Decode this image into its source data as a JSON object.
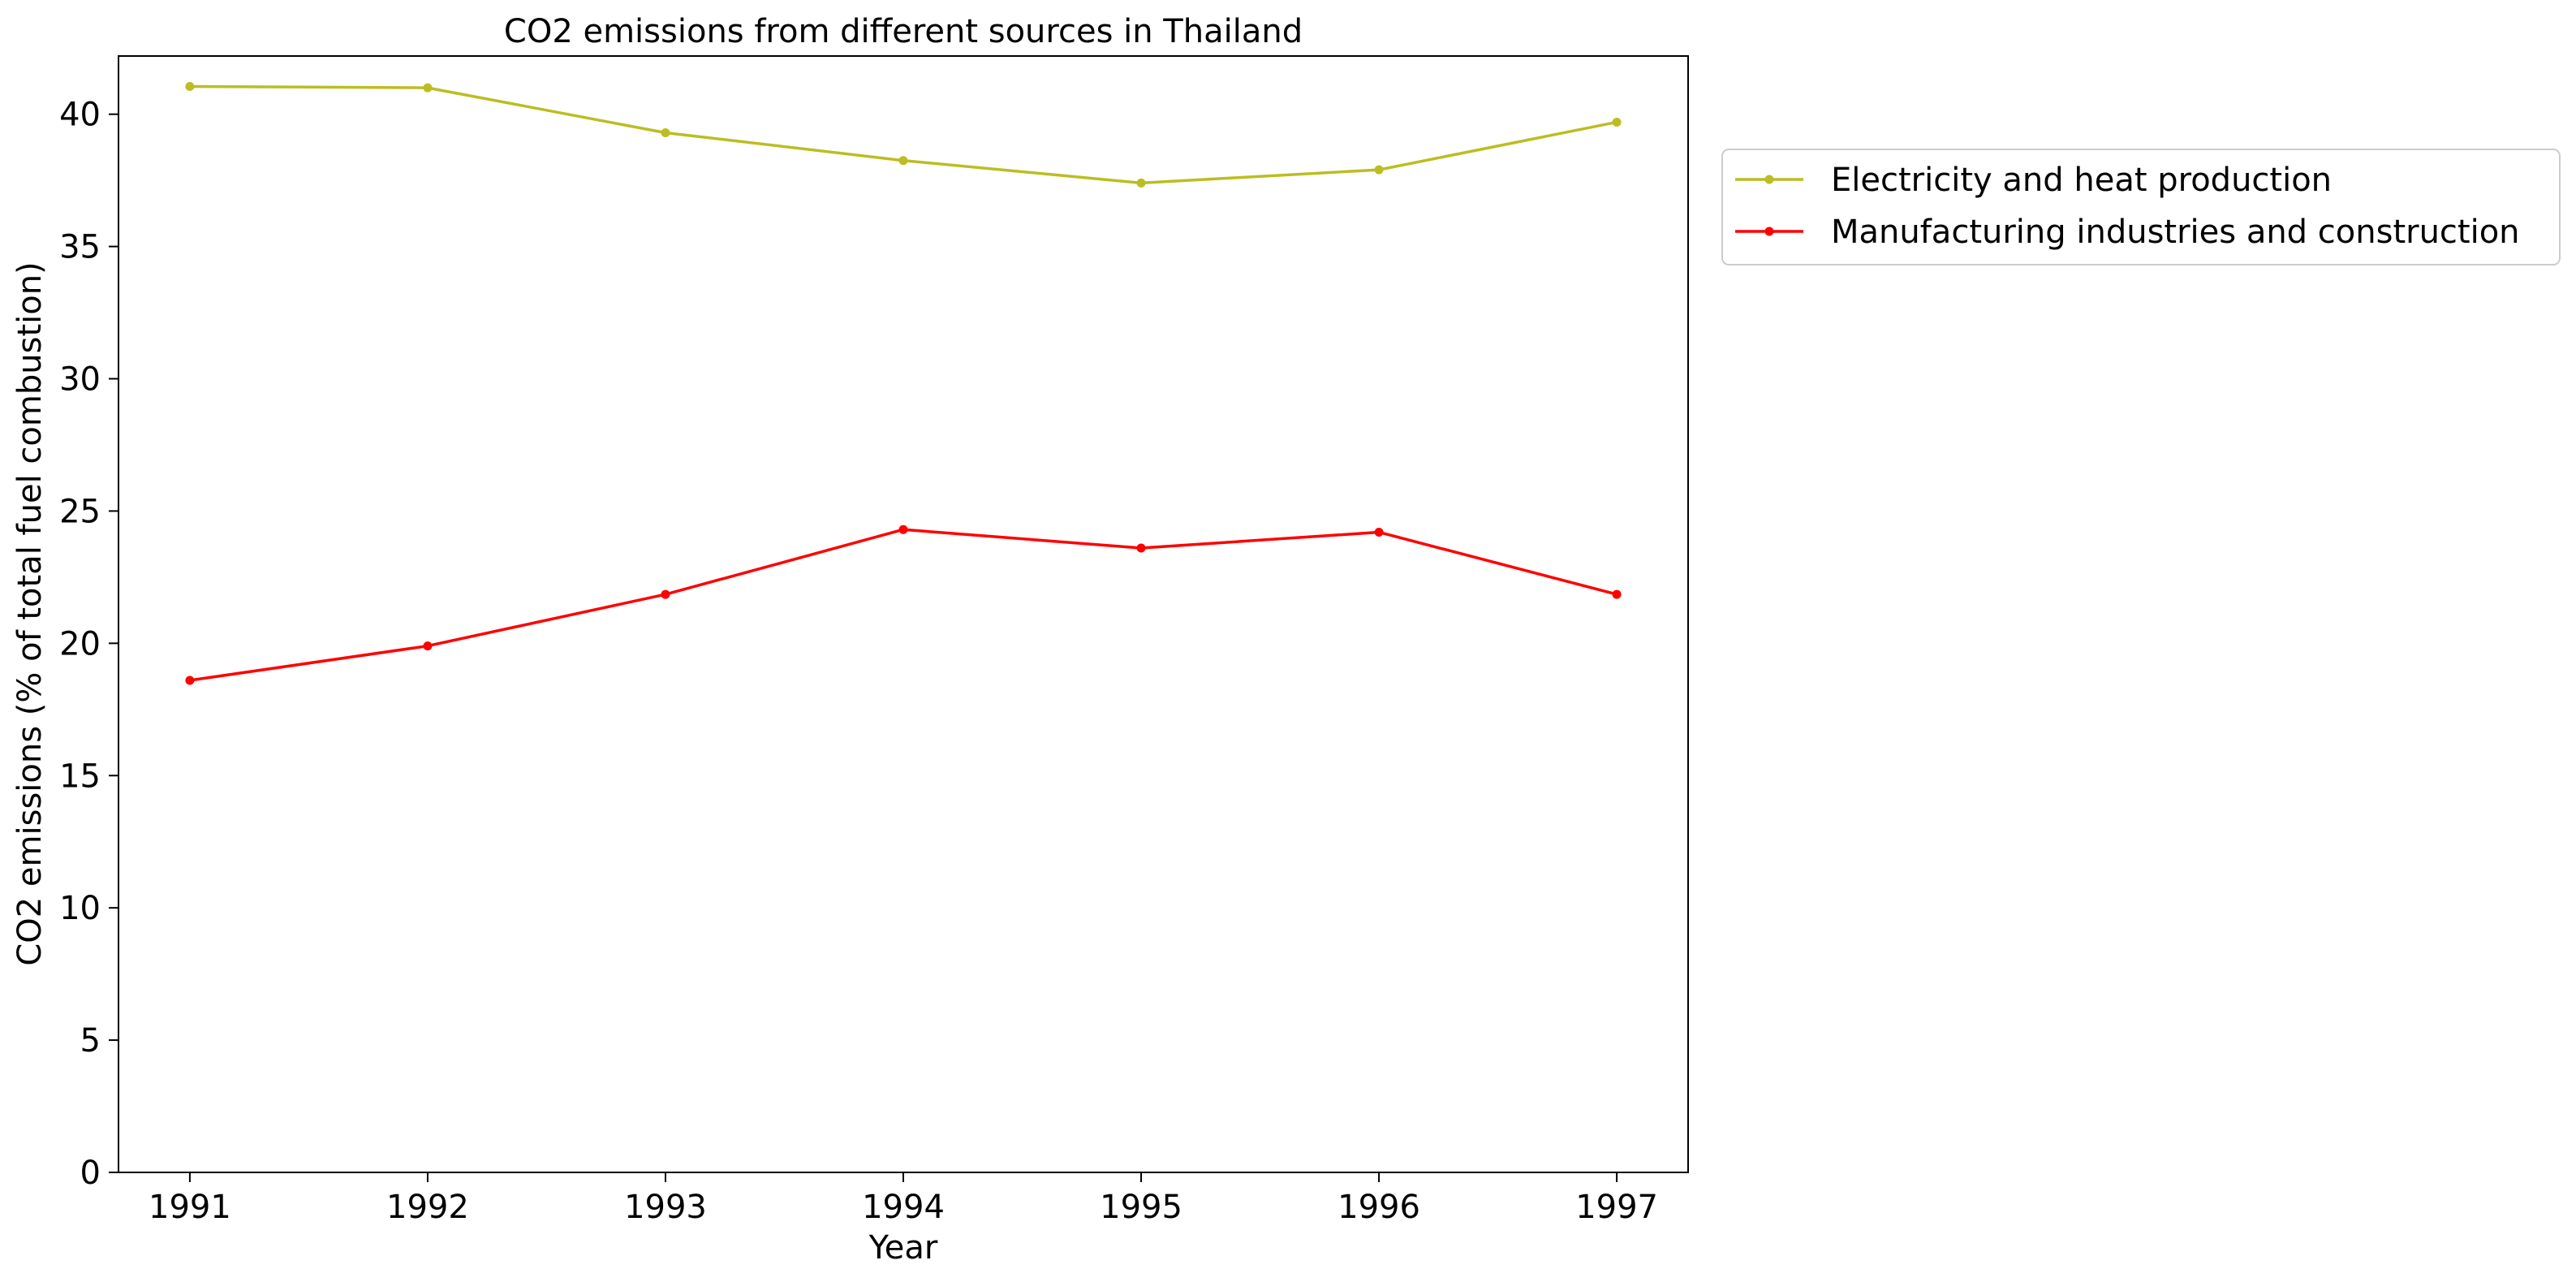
{
  "chart_data": {
    "type": "line",
    "title": "CO2 emissions from different sources in Thailand",
    "xlabel": "Year",
    "ylabel": "CO2 emissions (% of total fuel combustion)",
    "x": [
      1991,
      1992,
      1993,
      1994,
      1995,
      1996,
      1997
    ],
    "xlim": [
      1990.7,
      1997.3
    ],
    "ylim": [
      0,
      42.2
    ],
    "yticks": [
      0,
      5,
      10,
      15,
      20,
      25,
      30,
      35,
      40
    ],
    "grid": false,
    "legend_position": "outside-top-right",
    "series": [
      {
        "name": "Electricity and heat production",
        "color": "#bcbd22",
        "marker": "dot",
        "values": [
          41.05,
          41.0,
          39.3,
          38.25,
          37.4,
          37.9,
          39.7
        ]
      },
      {
        "name": "Manufacturing industries and construction",
        "color": "#ff0000",
        "marker": "dot",
        "values": [
          18.6,
          19.9,
          21.85,
          24.3,
          23.6,
          24.2,
          21.85
        ]
      }
    ]
  }
}
